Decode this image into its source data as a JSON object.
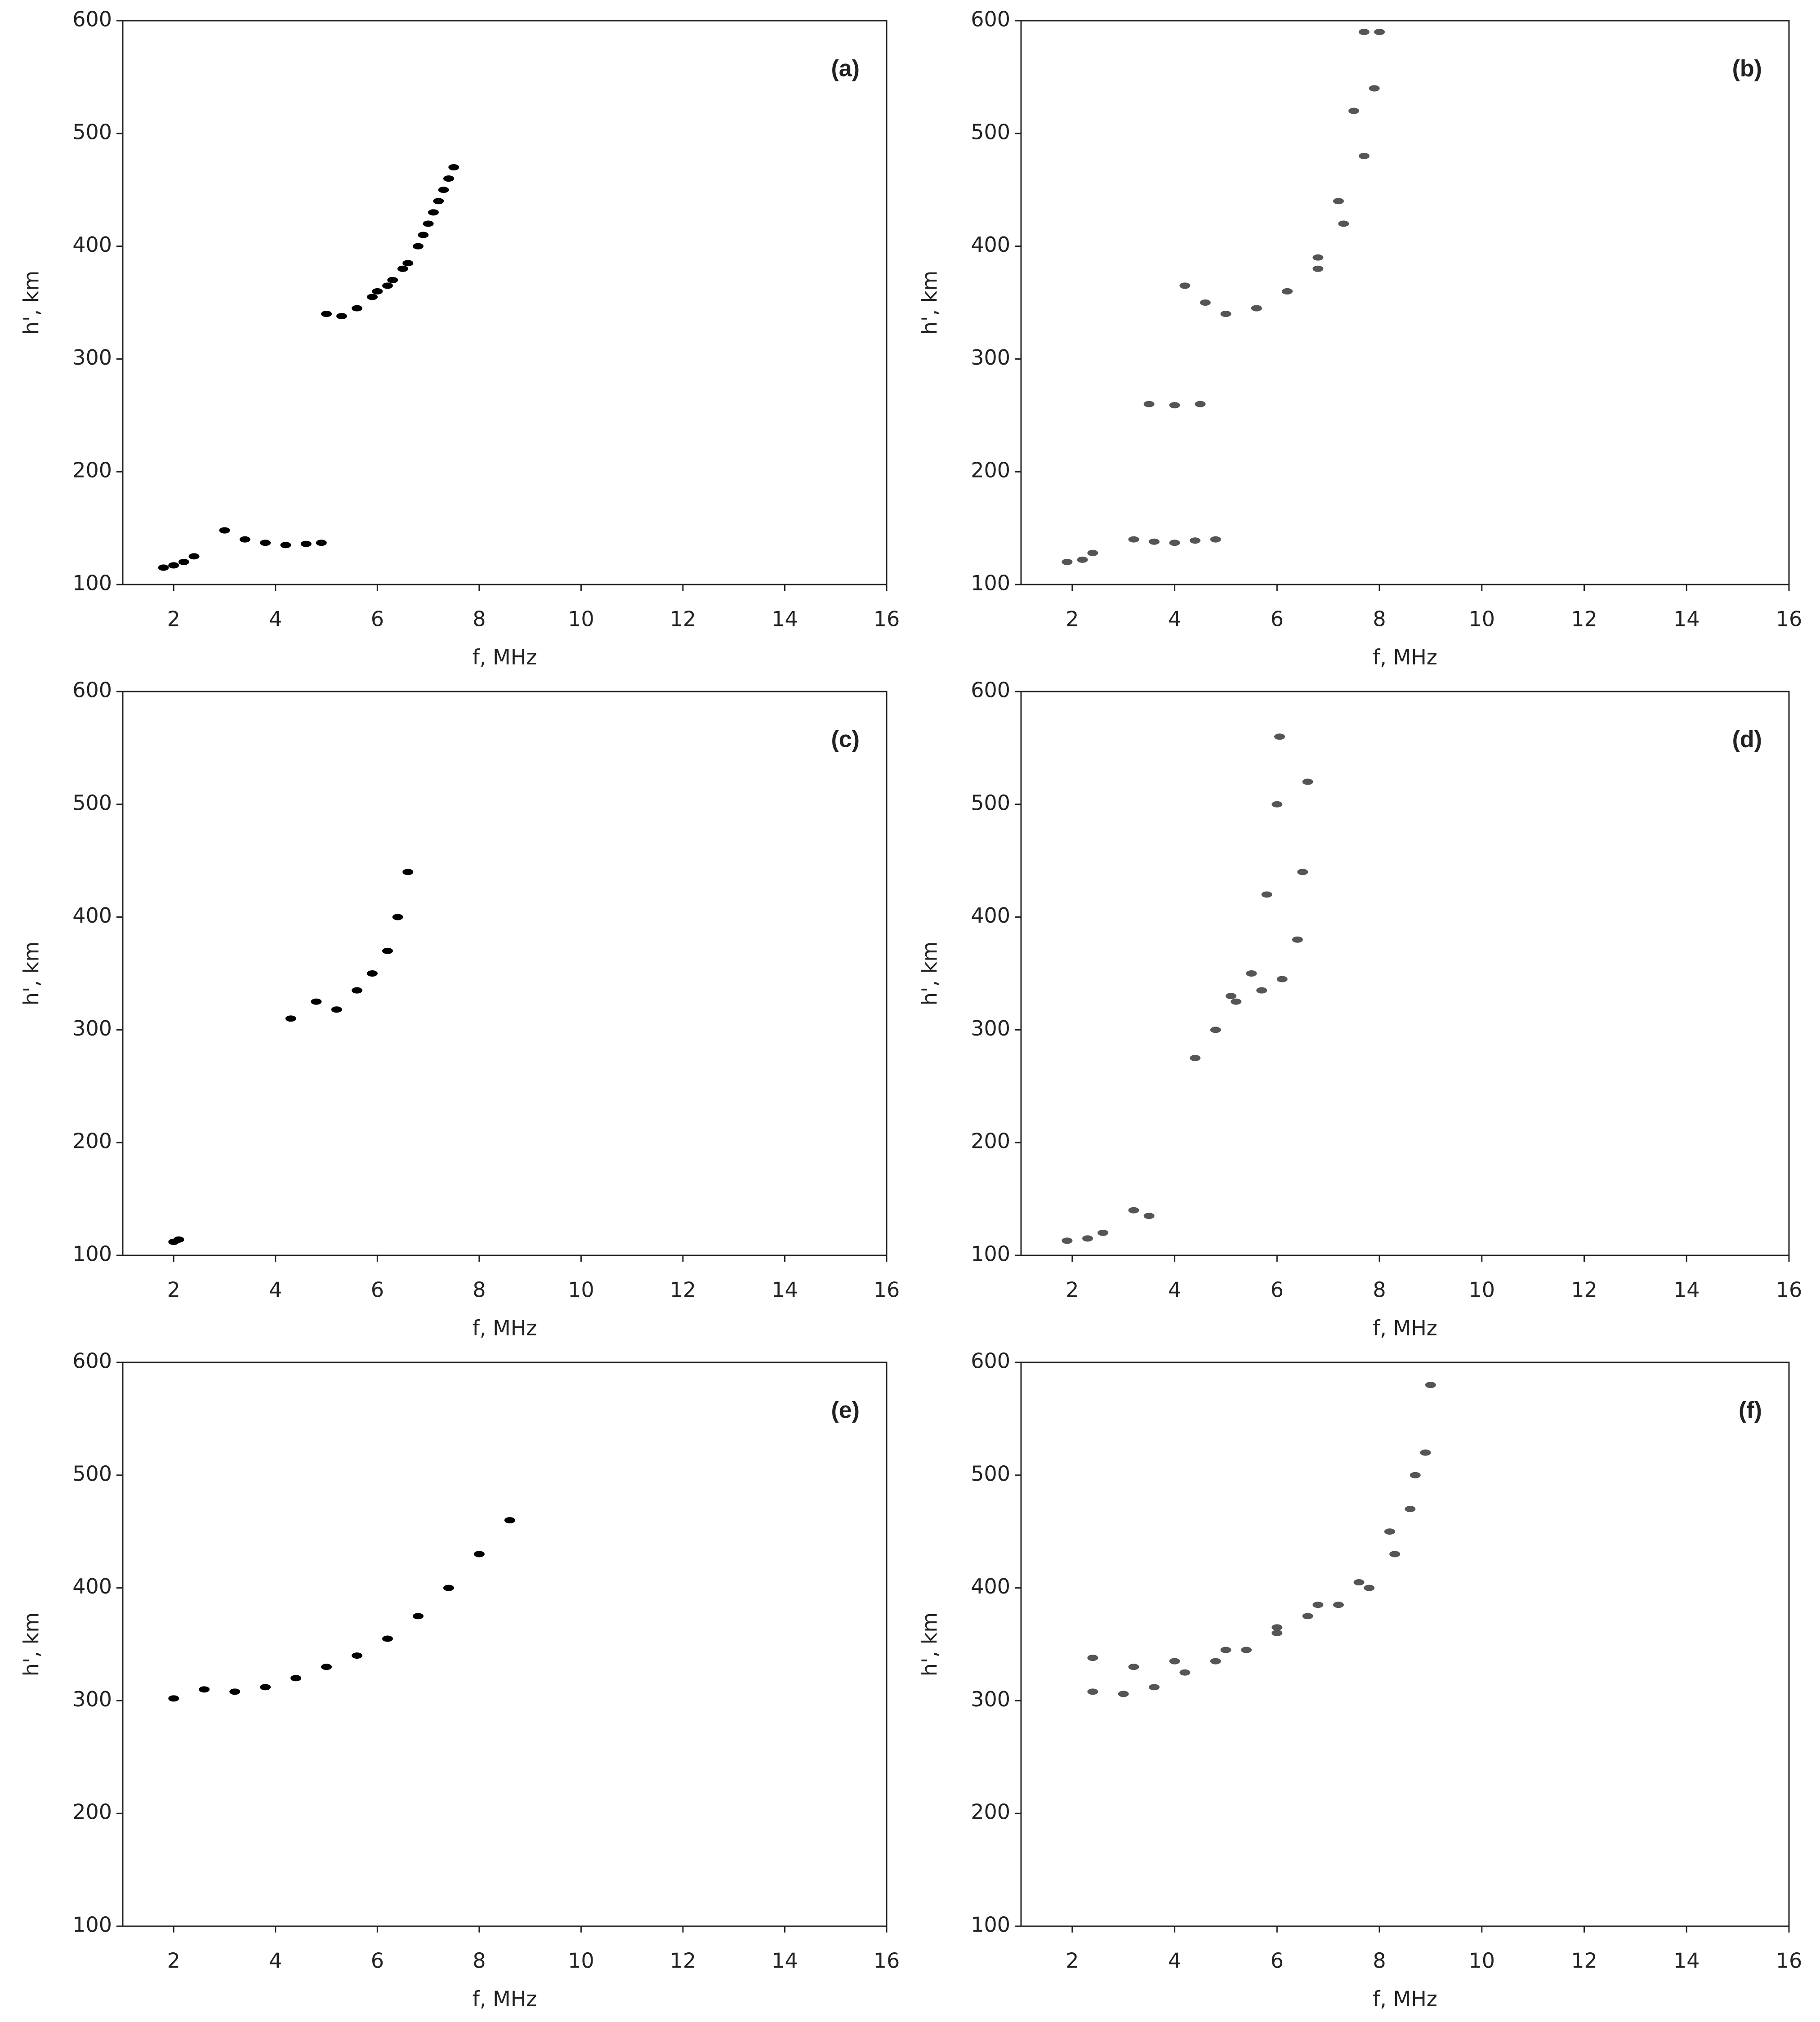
{
  "chart_data": [
    {
      "type": "scatter",
      "title": "(a)",
      "xlabel": "f, MHz",
      "ylabel": "h', km",
      "xlim": [
        1,
        16
      ],
      "ylim": [
        100,
        600
      ],
      "xticks": [
        2,
        4,
        6,
        8,
        10,
        12,
        14,
        16
      ],
      "yticks": [
        100,
        200,
        300,
        400,
        500,
        600
      ],
      "series": [
        {
          "color": "#000000",
          "x": [
            5.0,
            5.3,
            5.6,
            5.9,
            6.2,
            6.5,
            6.8,
            7.0,
            7.2,
            7.4
          ],
          "y": [
            340,
            338,
            345,
            355,
            365,
            380,
            400,
            420,
            440,
            460
          ]
        },
        {
          "color": "#000000",
          "x": [
            6.0,
            6.3,
            6.6,
            6.9,
            7.1,
            7.3,
            7.5
          ],
          "y": [
            360,
            370,
            385,
            410,
            430,
            450,
            470
          ]
        },
        {
          "color": "#000000",
          "x": [
            3.0,
            3.4,
            3.8,
            4.2,
            4.6,
            4.9
          ],
          "y": [
            148,
            140,
            137,
            135,
            136,
            137
          ]
        },
        {
          "color": "#000000",
          "x": [
            1.8,
            2.0,
            2.2,
            2.4
          ],
          "y": [
            115,
            117,
            120,
            125
          ]
        }
      ]
    },
    {
      "type": "scatter",
      "title": "(b)",
      "xlabel": "f, MHz",
      "ylabel": "h', km",
      "xlim": [
        1,
        16
      ],
      "ylim": [
        100,
        600
      ],
      "xticks": [
        2,
        4,
        6,
        8,
        10,
        12,
        14,
        16
      ],
      "yticks": [
        100,
        200,
        300,
        400,
        500,
        600
      ],
      "series": [
        {
          "color": "#555555",
          "x": [
            4.2,
            4.6,
            5.0,
            5.6,
            6.2,
            6.8,
            7.2,
            7.5,
            7.7
          ],
          "y": [
            365,
            350,
            340,
            345,
            360,
            390,
            440,
            520,
            590
          ]
        },
        {
          "color": "#555555",
          "x": [
            5.6,
            6.2,
            6.8,
            7.3,
            7.7,
            7.9,
            8.0
          ],
          "y": [
            345,
            360,
            380,
            420,
            480,
            540,
            590
          ]
        },
        {
          "color": "#555555",
          "x": [
            3.2,
            3.6,
            4.0,
            4.4,
            4.8
          ],
          "y": [
            140,
            138,
            137,
            139,
            140
          ]
        },
        {
          "color": "#555555",
          "x": [
            3.5,
            4.0,
            4.5
          ],
          "y": [
            260,
            259,
            260
          ]
        },
        {
          "color": "#555555",
          "x": [
            1.9,
            2.2,
            2.4
          ],
          "y": [
            120,
            122,
            128
          ]
        }
      ]
    },
    {
      "type": "scatter",
      "title": "(c)",
      "xlabel": "f, MHz",
      "ylabel": "h', km",
      "xlim": [
        1,
        16
      ],
      "ylim": [
        100,
        600
      ],
      "xticks": [
        2,
        4,
        6,
        8,
        10,
        12,
        14,
        16
      ],
      "yticks": [
        100,
        200,
        300,
        400,
        500,
        600
      ],
      "series": [
        {
          "color": "#000000",
          "x": [
            4.3,
            4.8,
            5.2,
            5.6,
            5.9,
            6.2,
            6.4,
            6.6
          ],
          "y": [
            310,
            325,
            318,
            335,
            350,
            370,
            400,
            440
          ]
        },
        {
          "color": "#000000",
          "x": [
            2.0,
            2.1
          ],
          "y": [
            112,
            114
          ]
        }
      ]
    },
    {
      "type": "scatter",
      "title": "(d)",
      "xlabel": "f, MHz",
      "ylabel": "h', km",
      "xlim": [
        1,
        16
      ],
      "ylim": [
        100,
        600
      ],
      "xticks": [
        2,
        4,
        6,
        8,
        10,
        12,
        14,
        16
      ],
      "yticks": [
        100,
        200,
        300,
        400,
        500,
        600
      ],
      "series": [
        {
          "color": "#555555",
          "x": [
            4.4,
            4.8,
            5.1,
            5.5,
            5.8,
            6.0,
            6.05
          ],
          "y": [
            275,
            300,
            330,
            350,
            420,
            500,
            560
          ]
        },
        {
          "color": "#555555",
          "x": [
            5.2,
            5.7,
            6.1,
            6.4,
            6.5,
            6.6
          ],
          "y": [
            325,
            335,
            345,
            380,
            440,
            520
          ]
        },
        {
          "color": "#555555",
          "x": [
            3.2,
            3.5
          ],
          "y": [
            140,
            135
          ]
        },
        {
          "color": "#555555",
          "x": [
            1.9,
            2.3,
            2.6
          ],
          "y": [
            113,
            115,
            120
          ]
        }
      ]
    },
    {
      "type": "scatter",
      "title": "(e)",
      "xlabel": "f, MHz",
      "ylabel": "h', km",
      "xlim": [
        1,
        16
      ],
      "ylim": [
        100,
        600
      ],
      "xticks": [
        2,
        4,
        6,
        8,
        10,
        12,
        14,
        16
      ],
      "yticks": [
        100,
        200,
        300,
        400,
        500,
        600
      ],
      "series": [
        {
          "color": "#000000",
          "x": [
            2.0,
            2.6,
            3.2,
            3.8,
            4.4,
            5.0,
            5.6,
            6.2,
            6.8,
            7.4,
            8.0,
            8.6
          ],
          "y": [
            302,
            310,
            308,
            312,
            320,
            330,
            340,
            355,
            375,
            400,
            430,
            460
          ]
        }
      ]
    },
    {
      "type": "scatter",
      "title": "(f)",
      "xlabel": "f, MHz",
      "ylabel": "h', km",
      "xlim": [
        1,
        16
      ],
      "ylim": [
        100,
        600
      ],
      "xticks": [
        2,
        4,
        6,
        8,
        10,
        12,
        14,
        16
      ],
      "yticks": [
        100,
        200,
        300,
        400,
        500,
        600
      ],
      "series": [
        {
          "color": "#555555",
          "x": [
            2.4,
            3.0,
            3.6,
            4.2,
            4.8,
            5.4,
            6.0,
            6.6,
            7.2,
            7.8,
            8.3,
            8.6,
            8.9
          ],
          "y": [
            308,
            306,
            312,
            325,
            335,
            345,
            360,
            375,
            385,
            400,
            430,
            470,
            520
          ]
        },
        {
          "color": "#555555",
          "x": [
            2.4,
            3.2,
            4.0,
            5.0,
            6.0,
            6.8,
            7.6,
            8.2,
            8.7,
            9.0
          ],
          "y": [
            338,
            330,
            335,
            345,
            365,
            385,
            405,
            450,
            500,
            580
          ]
        }
      ]
    }
  ]
}
